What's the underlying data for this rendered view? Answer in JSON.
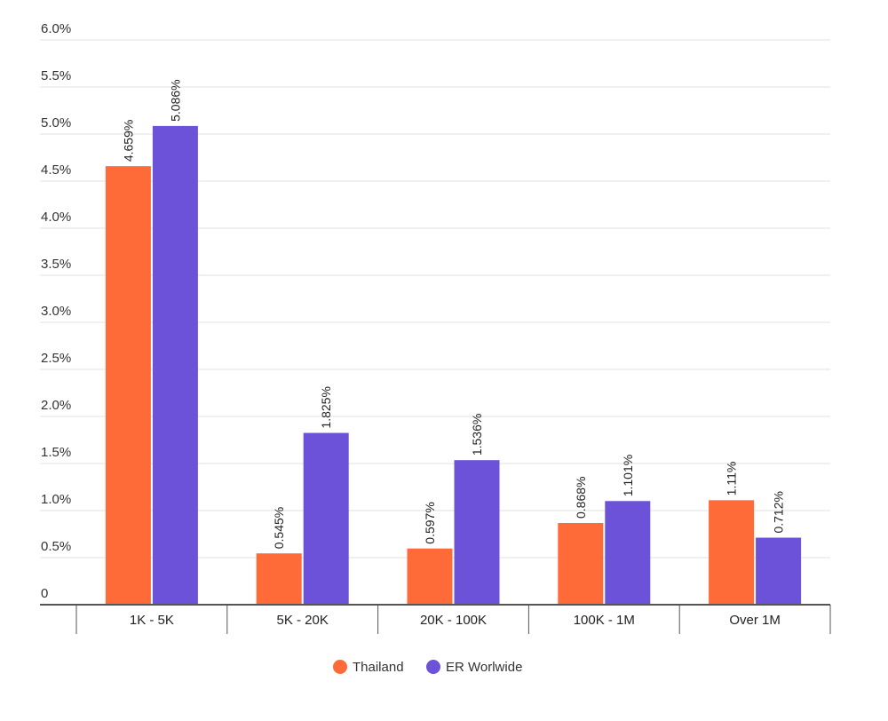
{
  "chart_data": {
    "type": "bar",
    "categories": [
      "1K - 5K",
      "5K - 20K",
      "20K - 100K",
      "100K - 1M",
      "Over 1M"
    ],
    "series": [
      {
        "name": "Thailand",
        "color": "#ff6a39",
        "values": [
          4.659,
          0.545,
          0.597,
          0.868,
          1.11
        ],
        "labels": [
          "4.659%",
          "0.545%",
          "0.597%",
          "0.868%",
          "1.11%"
        ]
      },
      {
        "name": "ER Worlwide",
        "color": "#6b52d8",
        "values": [
          5.086,
          1.825,
          1.536,
          1.101,
          0.712
        ],
        "labels": [
          "5.086%",
          "1.825%",
          "1.536%",
          "1.101%",
          "0.712%"
        ]
      }
    ],
    "ylim": [
      0,
      6
    ],
    "yticks": [
      0,
      0.5,
      1,
      1.5,
      2,
      2.5,
      3,
      3.5,
      4,
      4.5,
      5,
      5.5,
      6
    ],
    "ytick_labels": [
      "0",
      "0.5%",
      "1.0%",
      "1.5%",
      "2.0%",
      "2.5%",
      "3.0%",
      "3.5%",
      "4.0%",
      "4.5%",
      "5.0%",
      "5.5%",
      "6.0%"
    ],
    "grid": true,
    "legend_position": "bottom-center",
    "title": "",
    "xlabel": "",
    "ylabel": ""
  }
}
